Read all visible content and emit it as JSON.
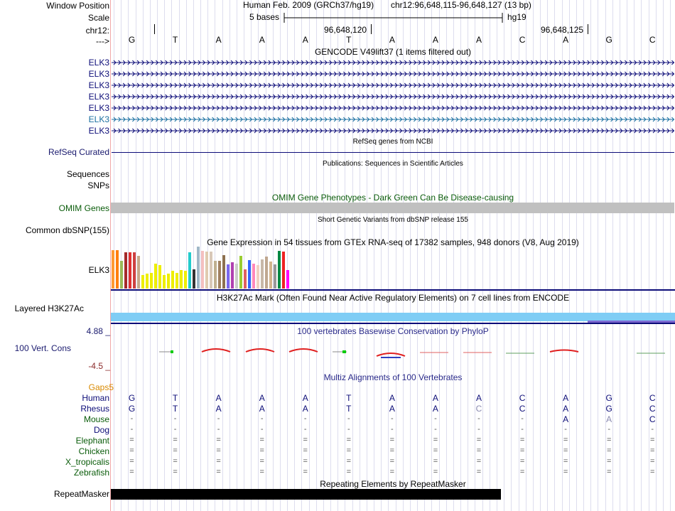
{
  "header": {
    "window_position_label": "Window Position",
    "scale_label": "Scale",
    "chrom_label": "chr12:",
    "strand_label": "--->",
    "assembly": "Human Feb. 2009 (GRCh37/hg19)",
    "position": "chr12:96,648,115-96,648,127 (13 bp)",
    "scale_text": "5 bases",
    "db": "hg19",
    "coord1": "96,648,120",
    "coord2": "96,648,125"
  },
  "bases": [
    "G",
    "T",
    "A",
    "A",
    "A",
    "T",
    "A",
    "A",
    "A",
    "C",
    "A",
    "G",
    "C"
  ],
  "gencode": {
    "title": "GENCODE V49lift37 (1 items filtered out)",
    "genes": [
      "ELK3",
      "ELK3",
      "ELK3",
      "ELK3",
      "ELK3",
      "ELK3",
      "ELK3"
    ],
    "colors": [
      "#0c0c78",
      "#0c0c78",
      "#0c0c78",
      "#0c0c78",
      "#0c0c78",
      "#1a6fa0",
      "#0c0c78"
    ]
  },
  "refseq": {
    "label": "RefSeq Curated",
    "title": "RefSeq genes from NCBI"
  },
  "publications": {
    "title": "Publications: Sequences in Scientific Articles",
    "label1": "Sequences",
    "label2": "SNPs"
  },
  "omim": {
    "title": "OMIM Gene Phenotypes - Dark Green Can Be Disease-causing",
    "label": "OMIM Genes"
  },
  "dbsnp": {
    "title": "Short Genetic Variants from dbSNP release 155",
    "label": "Common dbSNP(155)"
  },
  "gtex": {
    "title": "Gene Expression in 54 tissues from GTEx RNA-seq of 17382 samples, 948 donors (V8, Aug 2019)",
    "label": "ELK3",
    "bars": [
      {
        "v": 0.92,
        "c": "#ff9933"
      },
      {
        "v": 0.92,
        "c": "#ff7f0e"
      },
      {
        "v": 0.66,
        "c": "#9bbb59"
      },
      {
        "v": 0.86,
        "c": "#a52a2a"
      },
      {
        "v": 0.86,
        "c": "#e03030"
      },
      {
        "v": 0.86,
        "c": "#d04040"
      },
      {
        "v": 0.78,
        "c": "#c8a88a"
      },
      {
        "v": 0.33,
        "c": "#eeee00"
      },
      {
        "v": 0.36,
        "c": "#eeee00"
      },
      {
        "v": 0.38,
        "c": "#eeee00"
      },
      {
        "v": 0.6,
        "c": "#eeee00"
      },
      {
        "v": 0.56,
        "c": "#eeee00"
      },
      {
        "v": 0.32,
        "c": "#eeee00"
      },
      {
        "v": 0.36,
        "c": "#eeee00"
      },
      {
        "v": 0.42,
        "c": "#eeee00"
      },
      {
        "v": 0.38,
        "c": "#eeee00"
      },
      {
        "v": 0.44,
        "c": "#eeee00"
      },
      {
        "v": 0.42,
        "c": "#eeee00"
      },
      {
        "v": 0.86,
        "c": "#22cccc"
      },
      {
        "v": 0.45,
        "c": "#333333"
      },
      {
        "v": 1.0,
        "c": "#a0b8c8"
      },
      {
        "v": 0.9,
        "c": "#f5c0c0"
      },
      {
        "v": 0.88,
        "c": "#e0cbb0"
      },
      {
        "v": 0.88,
        "c": "#d8c8b8"
      },
      {
        "v": 0.66,
        "c": "#c0b090"
      },
      {
        "v": 0.66,
        "c": "#a08060"
      },
      {
        "v": 0.8,
        "c": "#8c7050"
      },
      {
        "v": 0.58,
        "c": "#7b68ee"
      },
      {
        "v": 0.62,
        "c": "#b040b0"
      },
      {
        "v": 0.6,
        "c": "#cccccc"
      },
      {
        "v": 0.78,
        "c": "#9acd32"
      },
      {
        "v": 0.45,
        "c": "#e06060"
      },
      {
        "v": 0.68,
        "c": "#3366ff"
      },
      {
        "v": 0.6,
        "c": "#ff88bb"
      },
      {
        "v": 0.56,
        "c": "#f0d0c0"
      },
      {
        "v": 0.7,
        "c": "#c8b8a8"
      },
      {
        "v": 0.76,
        "c": "#bfa790"
      },
      {
        "v": 0.64,
        "c": "#d2b48c"
      },
      {
        "v": 0.58,
        "c": "#999999"
      },
      {
        "v": 0.9,
        "c": "#008844"
      },
      {
        "v": 0.88,
        "c": "#ee2222"
      },
      {
        "v": 0.44,
        "c": "#ff00ff"
      }
    ]
  },
  "h3k27ac": {
    "title": "H3K27Ac Mark (Often Found Near Active Regulatory Elements) on 7 cell lines from ENCODE",
    "label": "Layered H3K27Ac"
  },
  "phylop": {
    "title": "100 vertebrates Basewise Conservation by PhyloP",
    "label": "100 Vert. Cons",
    "max": "4.88 _",
    "min": "-4.5 _"
  },
  "multiz": {
    "title": "Multiz Alignments of 100 Vertebrates",
    "gaps_label": "Gaps5",
    "rows": [
      {
        "name": "Human",
        "seq": [
          "G",
          "T",
          "A",
          "A",
          "A",
          "T",
          "A",
          "A",
          "A",
          "C",
          "A",
          "G",
          "C"
        ],
        "color": "#0c0c78"
      },
      {
        "name": "Rhesus",
        "seq": [
          "G",
          "T",
          "A",
          "A",
          "A",
          "T",
          "A",
          "A",
          "C",
          "C",
          "A",
          "G",
          "C"
        ],
        "color": "#0c0c78"
      },
      {
        "name": "Mouse",
        "seq": [
          "-",
          "-",
          "-",
          "-",
          "-",
          "-",
          "-",
          "-",
          "-",
          "-",
          "A",
          "A",
          "C"
        ],
        "color": "#0a5c0a"
      },
      {
        "name": "Dog",
        "seq": [
          "-",
          "-",
          "-",
          "-",
          "-",
          "-",
          "-",
          "-",
          "-",
          "-",
          "-",
          "-",
          "-"
        ],
        "color": "#0c0c78"
      },
      {
        "name": "Elephant",
        "seq": [
          "=",
          "=",
          "=",
          "=",
          "=",
          "=",
          "=",
          "=",
          "=",
          "=",
          "=",
          "=",
          "="
        ],
        "color": "#0a5c0a"
      },
      {
        "name": "Chicken",
        "seq": [
          "=",
          "=",
          "=",
          "=",
          "=",
          "=",
          "=",
          "=",
          "=",
          "=",
          "=",
          "=",
          "="
        ],
        "color": "#0a5c0a"
      },
      {
        "name": "X_tropicalis",
        "seq": [
          "=",
          "=",
          "=",
          "=",
          "=",
          "=",
          "=",
          "=",
          "=",
          "=",
          "=",
          "=",
          "="
        ],
        "color": "#0a5c0a"
      },
      {
        "name": "Zebrafish",
        "seq": [
          "=",
          "=",
          "=",
          "=",
          "=",
          "=",
          "=",
          "=",
          "=",
          "=",
          "=",
          "=",
          "="
        ],
        "color": "#0a5c0a"
      }
    ]
  },
  "repeatmasker": {
    "title": "Repeating Elements by RepeatMasker",
    "label": "RepeatMasker"
  }
}
